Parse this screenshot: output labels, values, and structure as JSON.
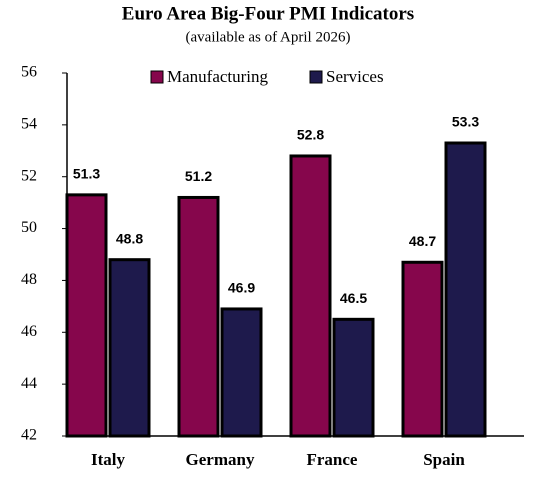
{
  "chart_data": {
    "type": "bar",
    "title": "Euro Area Big-Four PMI Indicators",
    "subtitle": "(available as of April 2026)",
    "categories": [
      "Italy",
      "Germany",
      "France",
      "Spain"
    ],
    "series": [
      {
        "name": "Manufacturing",
        "color": "#86064c",
        "values": [
          51.3,
          51.2,
          52.8,
          48.7
        ]
      },
      {
        "name": "Services",
        "color": "#1e1a4c",
        "values": [
          48.8,
          46.9,
          46.5,
          53.3
        ]
      }
    ],
    "ylim": [
      42,
      56
    ],
    "yticks": [
      42,
      44,
      46,
      48,
      50,
      52,
      54,
      56
    ],
    "grid": false
  }
}
